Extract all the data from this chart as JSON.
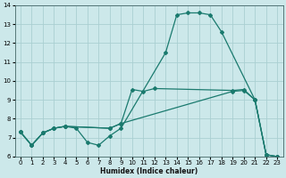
{
  "xlabel": "Humidex (Indice chaleur)",
  "xlim": [
    -0.5,
    23.5
  ],
  "ylim": [
    6,
    14
  ],
  "xticks": [
    0,
    1,
    2,
    3,
    4,
    5,
    6,
    7,
    8,
    9,
    10,
    11,
    12,
    13,
    14,
    15,
    16,
    17,
    18,
    19,
    20,
    21,
    22,
    23
  ],
  "yticks": [
    6,
    7,
    8,
    9,
    10,
    11,
    12,
    13,
    14
  ],
  "bg_color": "#cce8ea",
  "grid_color": "#aacfd2",
  "line_color": "#1a7a6e",
  "line1_x": [
    0,
    1,
    2,
    3,
    4,
    5,
    6,
    7,
    8,
    9,
    13,
    14,
    15,
    16,
    17,
    18,
    21,
    22,
    23
  ],
  "line1_y": [
    7.3,
    6.6,
    7.25,
    7.5,
    7.6,
    7.5,
    6.75,
    6.6,
    7.1,
    7.5,
    11.5,
    13.5,
    13.6,
    13.6,
    13.5,
    12.6,
    9.0,
    6.1,
    6.0
  ],
  "line2_x": [
    0,
    1,
    2,
    3,
    4,
    8,
    9,
    10,
    11,
    12,
    19,
    20,
    21,
    22,
    23
  ],
  "line2_y": [
    7.3,
    6.6,
    7.25,
    7.5,
    7.6,
    7.5,
    7.75,
    9.55,
    9.45,
    9.6,
    9.5,
    9.55,
    9.0,
    6.1,
    6.0
  ],
  "line3_x": [
    0,
    1,
    2,
    3,
    4,
    8,
    9,
    19,
    20,
    21,
    22,
    23
  ],
  "line3_y": [
    7.3,
    6.6,
    7.25,
    7.5,
    7.6,
    7.5,
    7.75,
    9.45,
    9.5,
    9.0,
    6.1,
    6.0
  ]
}
